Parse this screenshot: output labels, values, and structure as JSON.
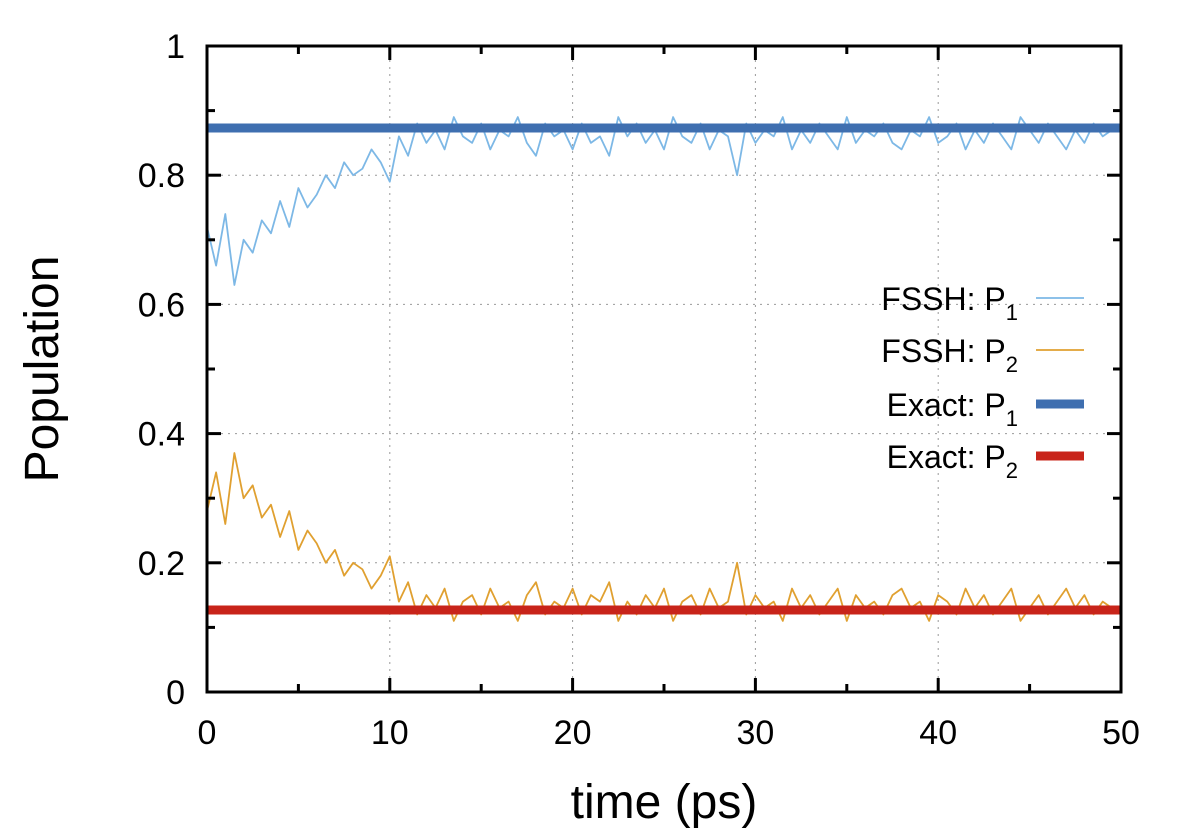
{
  "chart_data": {
    "type": "line",
    "title": "",
    "xlabel": "time (ps)",
    "ylabel": "Population",
    "xlim": [
      0,
      50
    ],
    "ylim": [
      0,
      1
    ],
    "xticks": [
      0,
      10,
      20,
      30,
      40,
      50
    ],
    "yticks": [
      0,
      0.2,
      0.4,
      0.6,
      0.8,
      1
    ],
    "xtick_labels": [
      "0",
      "10",
      "20",
      "30",
      "40",
      "50"
    ],
    "ytick_labels": [
      "0",
      "0.2",
      "0.4",
      "0.6",
      "0.8",
      "1"
    ],
    "grid": true,
    "legend_placement": "right",
    "series": [
      {
        "name_main": "FSSH: P",
        "name_sub": "1",
        "color": "#7db8e6",
        "style": "thin",
        "x": [
          0,
          0.5,
          1,
          1.5,
          2,
          2.5,
          3,
          3.5,
          4,
          4.5,
          5,
          5.5,
          6,
          6.5,
          7,
          7.5,
          8,
          8.5,
          9,
          9.5,
          10,
          10.5,
          11,
          11.5,
          12,
          12.5,
          13,
          13.5,
          14,
          14.5,
          15,
          15.5,
          16,
          16.5,
          17,
          17.5,
          18,
          18.5,
          19,
          19.5,
          20,
          20.5,
          21,
          21.5,
          22,
          22.5,
          23,
          23.5,
          24,
          24.5,
          25,
          25.5,
          26,
          26.5,
          27,
          27.5,
          28,
          28.5,
          29,
          29.5,
          30,
          30.5,
          31,
          31.5,
          32,
          32.5,
          33,
          33.5,
          34,
          34.5,
          35,
          35.5,
          36,
          36.5,
          37,
          37.5,
          38,
          38.5,
          39,
          39.5,
          40,
          40.5,
          41,
          41.5,
          42,
          42.5,
          43,
          43.5,
          44,
          44.5,
          45,
          45.5,
          46,
          46.5,
          47,
          47.5,
          48,
          48.5,
          49,
          49.5,
          50
        ],
        "values": [
          0.72,
          0.66,
          0.74,
          0.63,
          0.7,
          0.68,
          0.73,
          0.71,
          0.76,
          0.72,
          0.78,
          0.75,
          0.77,
          0.8,
          0.78,
          0.82,
          0.8,
          0.81,
          0.84,
          0.82,
          0.79,
          0.86,
          0.83,
          0.88,
          0.85,
          0.87,
          0.84,
          0.89,
          0.86,
          0.85,
          0.88,
          0.84,
          0.87,
          0.86,
          0.89,
          0.85,
          0.83,
          0.88,
          0.86,
          0.87,
          0.84,
          0.88,
          0.85,
          0.86,
          0.83,
          0.89,
          0.86,
          0.88,
          0.85,
          0.87,
          0.84,
          0.89,
          0.86,
          0.85,
          0.88,
          0.84,
          0.87,
          0.86,
          0.8,
          0.88,
          0.85,
          0.87,
          0.86,
          0.89,
          0.84,
          0.87,
          0.85,
          0.88,
          0.86,
          0.84,
          0.89,
          0.85,
          0.87,
          0.86,
          0.88,
          0.85,
          0.84,
          0.87,
          0.86,
          0.89,
          0.85,
          0.86,
          0.88,
          0.84,
          0.87,
          0.85,
          0.88,
          0.86,
          0.84,
          0.89,
          0.87,
          0.85,
          0.88,
          0.86,
          0.84,
          0.87,
          0.85,
          0.88,
          0.86,
          0.87,
          0.88
        ]
      },
      {
        "name_main": "FSSH: P",
        "name_sub": "2",
        "color": "#e0a030",
        "style": "thin",
        "x": [
          0,
          0.5,
          1,
          1.5,
          2,
          2.5,
          3,
          3.5,
          4,
          4.5,
          5,
          5.5,
          6,
          6.5,
          7,
          7.5,
          8,
          8.5,
          9,
          9.5,
          10,
          10.5,
          11,
          11.5,
          12,
          12.5,
          13,
          13.5,
          14,
          14.5,
          15,
          15.5,
          16,
          16.5,
          17,
          17.5,
          18,
          18.5,
          19,
          19.5,
          20,
          20.5,
          21,
          21.5,
          22,
          22.5,
          23,
          23.5,
          24,
          24.5,
          25,
          25.5,
          26,
          26.5,
          27,
          27.5,
          28,
          28.5,
          29,
          29.5,
          30,
          30.5,
          31,
          31.5,
          32,
          32.5,
          33,
          33.5,
          34,
          34.5,
          35,
          35.5,
          36,
          36.5,
          37,
          37.5,
          38,
          38.5,
          39,
          39.5,
          40,
          40.5,
          41,
          41.5,
          42,
          42.5,
          43,
          43.5,
          44,
          44.5,
          45,
          45.5,
          46,
          46.5,
          47,
          47.5,
          48,
          48.5,
          49,
          49.5,
          50
        ],
        "values": [
          0.28,
          0.34,
          0.26,
          0.37,
          0.3,
          0.32,
          0.27,
          0.29,
          0.24,
          0.28,
          0.22,
          0.25,
          0.23,
          0.2,
          0.22,
          0.18,
          0.2,
          0.19,
          0.16,
          0.18,
          0.21,
          0.14,
          0.17,
          0.12,
          0.15,
          0.13,
          0.16,
          0.11,
          0.14,
          0.15,
          0.12,
          0.16,
          0.13,
          0.14,
          0.11,
          0.15,
          0.17,
          0.12,
          0.14,
          0.13,
          0.16,
          0.12,
          0.15,
          0.14,
          0.17,
          0.11,
          0.14,
          0.12,
          0.15,
          0.13,
          0.16,
          0.11,
          0.14,
          0.15,
          0.12,
          0.16,
          0.13,
          0.14,
          0.2,
          0.12,
          0.15,
          0.13,
          0.14,
          0.11,
          0.16,
          0.13,
          0.15,
          0.12,
          0.14,
          0.16,
          0.11,
          0.15,
          0.13,
          0.14,
          0.12,
          0.15,
          0.16,
          0.13,
          0.14,
          0.11,
          0.15,
          0.14,
          0.12,
          0.16,
          0.13,
          0.15,
          0.12,
          0.14,
          0.16,
          0.11,
          0.13,
          0.15,
          0.12,
          0.14,
          0.16,
          0.13,
          0.15,
          0.12,
          0.14,
          0.13,
          0.12
        ]
      },
      {
        "name_main": "Exact: P",
        "name_sub": "1",
        "color": "#3f6fb0",
        "style": "thick",
        "x": [
          0,
          50
        ],
        "values": [
          0.873,
          0.873
        ]
      },
      {
        "name_main": "Exact: P",
        "name_sub": "2",
        "color": "#c8241a",
        "style": "thick",
        "x": [
          0,
          50
        ],
        "values": [
          0.127,
          0.127
        ]
      }
    ]
  }
}
